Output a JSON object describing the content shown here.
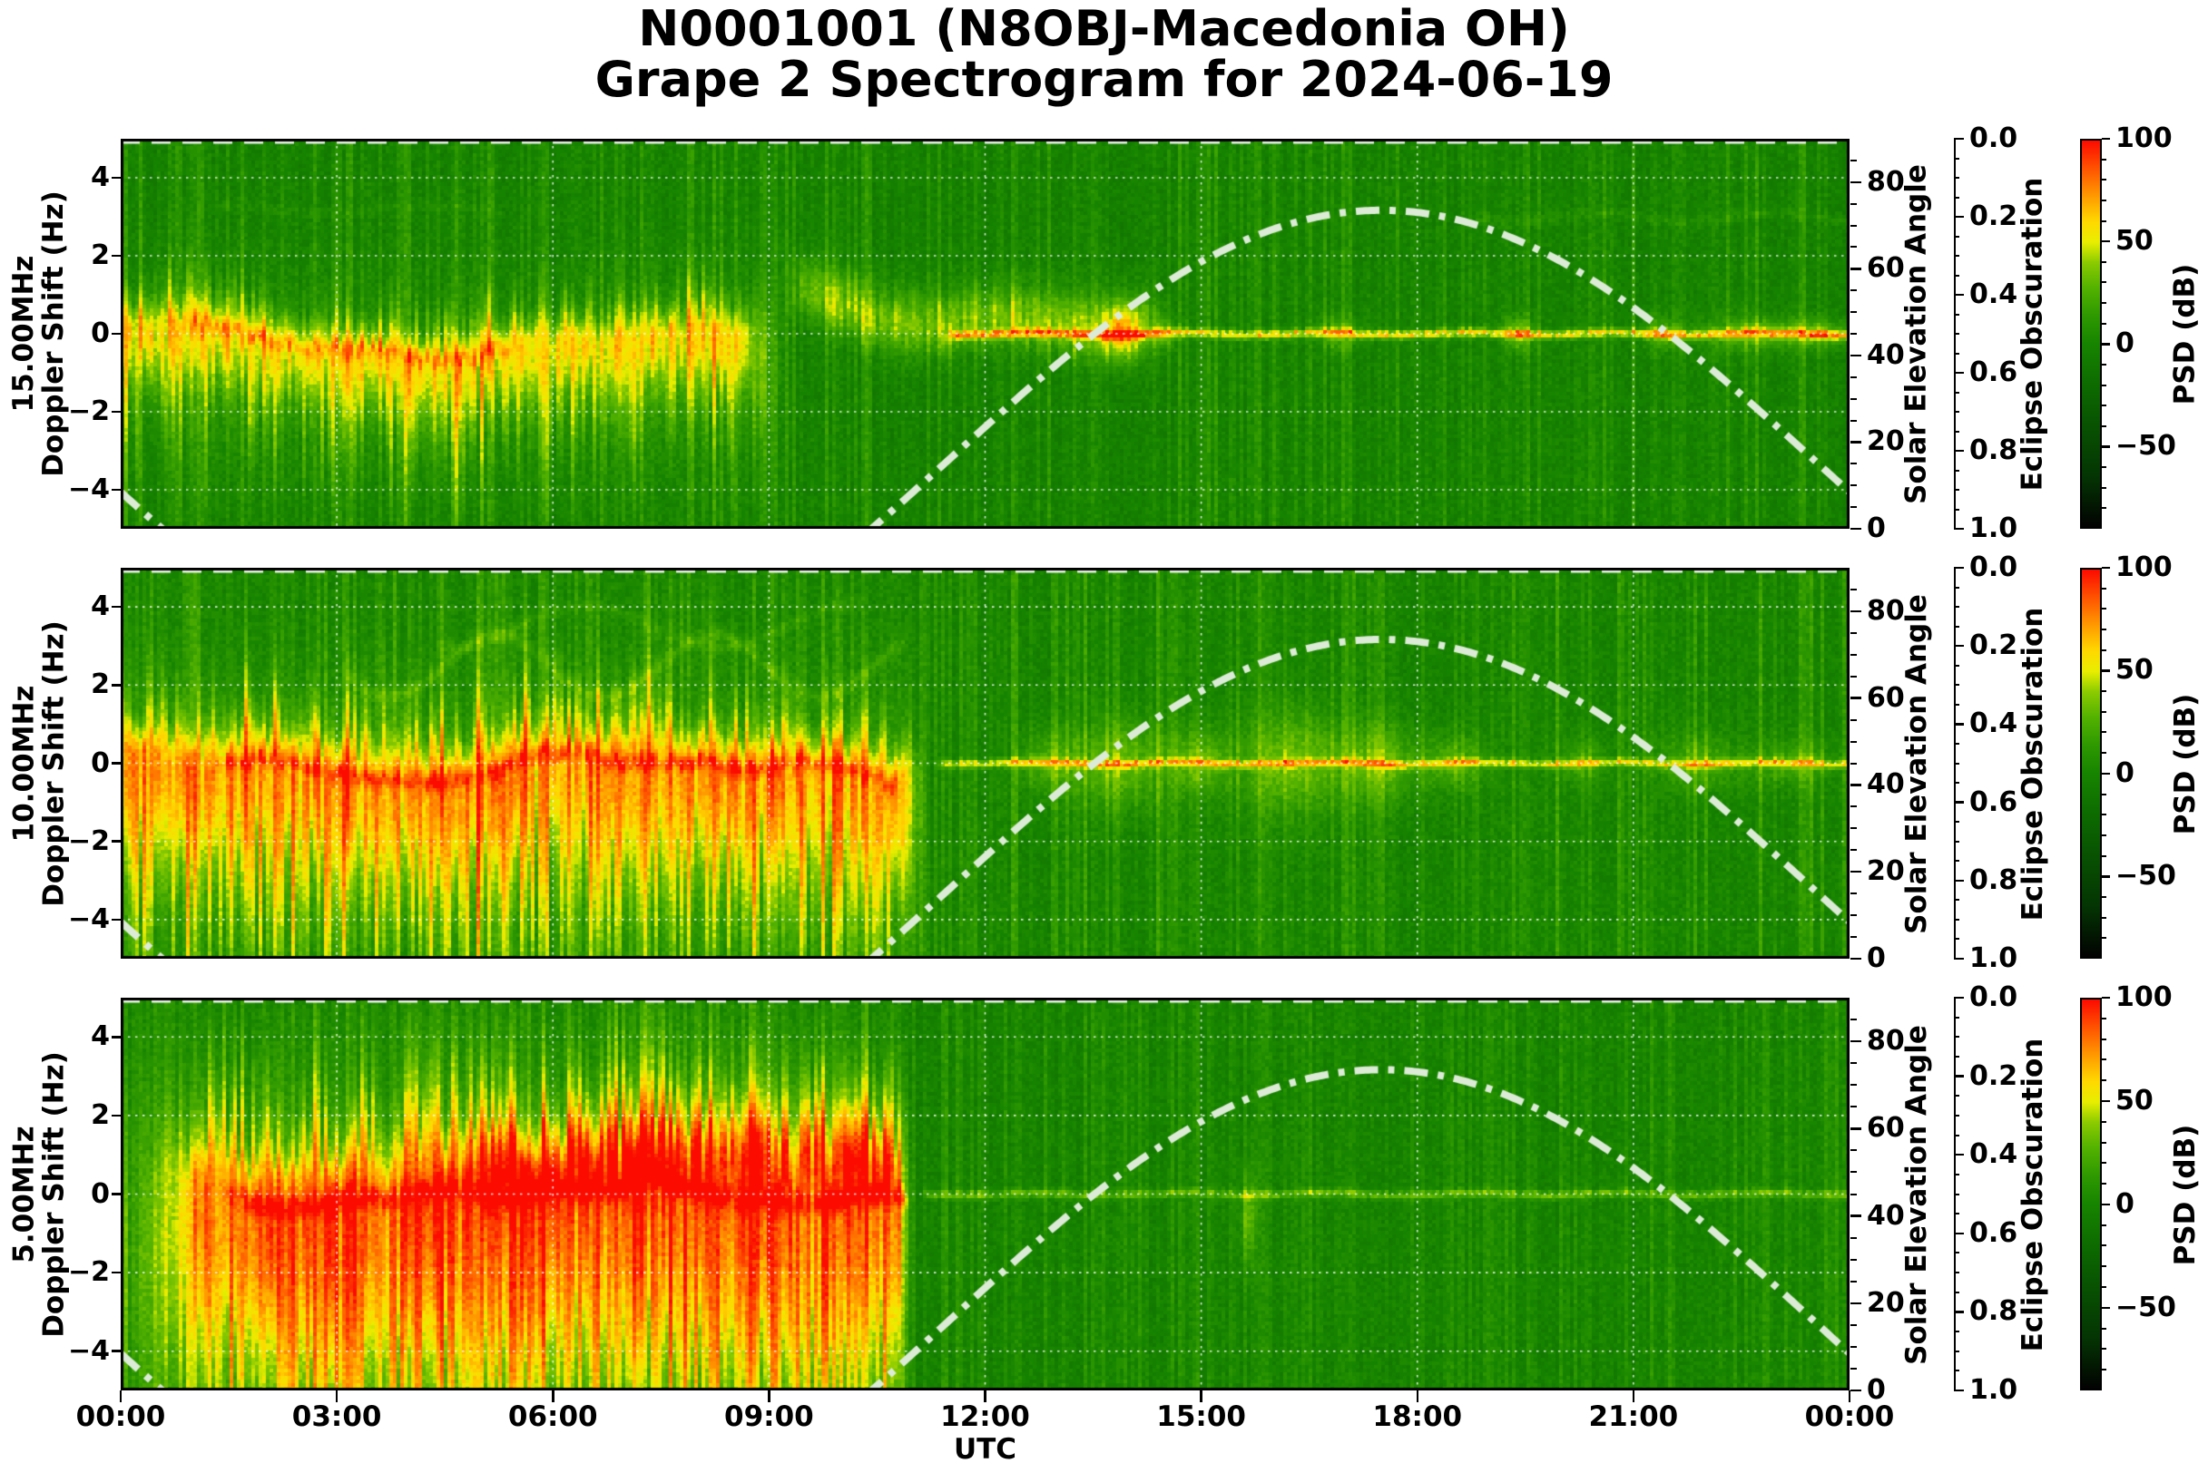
{
  "title": {
    "line1": "N0001001 (N8OBJ-Macedonia OH)",
    "line2": "Grape 2 Spectrogram for 2024-06-19"
  },
  "x_axis": {
    "label": "UTC",
    "tick_labels": [
      "00:00",
      "03:00",
      "06:00",
      "09:00",
      "12:00",
      "15:00",
      "18:00",
      "21:00",
      "00:00"
    ],
    "tick_hours": [
      0,
      3,
      6,
      9,
      12,
      15,
      18,
      21,
      24
    ],
    "range_hours": [
      0,
      24
    ],
    "grid_hours": [
      3,
      6,
      9,
      12,
      15,
      18,
      21
    ]
  },
  "doppler_axis": {
    "label": "Doppler Shift (Hz)",
    "tick_labels": [
      "4",
      "2",
      "0",
      "−2",
      "−4"
    ],
    "tick_values": [
      4,
      2,
      0,
      -2,
      -4
    ],
    "range": [
      -5,
      5
    ]
  },
  "solar_axis": {
    "label": "Solar Elevation Angle",
    "tick_labels": [
      "0",
      "20",
      "40",
      "60",
      "80"
    ],
    "tick_values": [
      0,
      20,
      40,
      60,
      80
    ],
    "minor_step": 5,
    "range": [
      0,
      90
    ]
  },
  "eclipse_axis": {
    "label": "Eclipse Obscuration",
    "tick_labels": [
      "0.0",
      "0.2",
      "0.4",
      "0.6",
      "0.8",
      "1.0"
    ],
    "tick_values": [
      0,
      0.2,
      0.4,
      0.6,
      0.8,
      1.0
    ],
    "minor_step": 0.05,
    "inverted": true
  },
  "colorbar": {
    "label": "PSD (dB)",
    "tick_labels": [
      "100",
      "50",
      "0",
      "−50"
    ],
    "tick_values": [
      100,
      50,
      0,
      -50
    ],
    "minor_step": 10,
    "range": [
      -90,
      100
    ]
  },
  "chart_data": {
    "type": "heatmap",
    "description": "Grape 2 HF Doppler-shift spectrograms (PSD in dB as color) at 15, 10 and 5 MHz versus UTC time for 2024-06-19, with solar elevation angle (white dash-dot curve, peak ~73 deg near 17:30 UTC) and eclipse obscuration (white dashed line, constant 0.0) overplotted.",
    "grid_color": "rgba(255,255,255,0.85)",
    "solar_curve": {
      "style": "dash-dot",
      "color": "#dcebd6",
      "peak_utc": 17.5,
      "peak_elevation_deg": 73.5,
      "mean_offset_deg": 16,
      "amplitude_deg": 57.5,
      "sunrise_utc": 10.4,
      "sunset_utc": 0.6
    },
    "eclipse_curve": {
      "style": "dashed",
      "color": "#eaf3e6",
      "constant_value": 0.0
    },
    "colormap_stops": [
      [
        -90,
        "#020202"
      ],
      [
        -65,
        "#043503"
      ],
      [
        -40,
        "#085202"
      ],
      [
        -20,
        "#0d6b00"
      ],
      [
        0,
        "#178400"
      ],
      [
        14,
        "#2e9900"
      ],
      [
        28,
        "#55b300"
      ],
      [
        40,
        "#8bcb00"
      ],
      [
        50,
        "#e8ee00"
      ],
      [
        60,
        "#ffd900"
      ],
      [
        72,
        "#ff9e00"
      ],
      [
        84,
        "#ff5f00"
      ],
      [
        100,
        "#fb0b00"
      ]
    ],
    "panels": [
      {
        "freq_label": "15.00MHz",
        "frequency_mhz": 15.0,
        "seed": 11,
        "render": {
          "bg": {
            "mean": -3,
            "noise": 6,
            "streak": 9
          },
          "wash": {
            "amp": 8,
            "c": -1.0,
            "s": 2.0,
            "t1": 9.6,
            "fade": 0.8
          },
          "band": {
            "t0": -0.3,
            "t1": 9.3,
            "fi": 0.4,
            "fo": 0.9,
            "amp": 50,
            "sup": 0.38,
            "sdn": 0.85,
            "jitter": 0.16,
            "wander": {
              "base": -0.15,
              "comps": [
                [
                  0.18,
                  1.07,
                  0.5
                ],
                [
                  0.28,
                  0.53,
                  2.1
                ],
                [
                  0.1,
                  2.9,
                  4.0
                ]
              ]
            }
          },
          "cloud": {
            "t0": 9.0,
            "t1": 14.7,
            "fi": 0.8,
            "fo": 0.8,
            "amp": 36,
            "sup": 0.6,
            "sdn": 0.5,
            "wander": {
              "base": 0.55,
              "comps": [
                [
                  0.45,
                  0.8,
                  1.0
                ],
                [
                  0.25,
                  1.9,
                  3.1
                ]
              ]
            }
          },
          "core": {
            "t0": 0.8,
            "t1": 5.6,
            "amp": 30,
            "w": 0.13,
            "fi": 0.3,
            "fo": 0.5
          },
          "line": {
            "start": 11.4,
            "amp": 56,
            "w": 0.075
          },
          "bursts": [
            [
              13.9,
              0.22,
              38,
              0.5,
              0
            ],
            [
              14.5,
              0.12,
              26,
              0.3,
              0
            ],
            [
              16.9,
              0.18,
              26,
              0.3,
              0
            ],
            [
              19.4,
              0.15,
              34,
              0.3,
              0
            ],
            [
              21.4,
              0.18,
              26,
              0.3,
              0
            ],
            [
              22.7,
              0.5,
              30,
              0.3,
              0
            ],
            [
              23.6,
              0.3,
              28,
              0.25,
              0
            ]
          ],
          "xlines": [
            [
              3.0,
              9,
              0.1,
              18.8,
              24.2,
              0.12,
              1.3
            ],
            [
              3.2,
              6,
              0.1,
              1.2,
              5.3,
              0.1,
              1.1
            ]
          ],
          "upMul": 1.6
        }
      },
      {
        "freq_label": "10.00MHz",
        "frequency_mhz": 10.0,
        "seed": 22,
        "render": {
          "bg": {
            "mean": -1,
            "noise": 6,
            "streak": 10
          },
          "wash": {
            "amp": 15,
            "c": -1.4,
            "s": 2.7,
            "t1": 11.3,
            "fade": 0.5
          },
          "band": {
            "t0": -0.3,
            "t1": 11.25,
            "fi": 0.4,
            "fo": 0.5,
            "amp": 56,
            "sup": 0.5,
            "sdn": 1.6,
            "jitter": 0.13,
            "wander": {
              "base": -0.1,
              "comps": [
                [
                  0.25,
                  0.9,
                  1.4
                ],
                [
                  0.18,
                  1.75,
                  3.6
                ],
                [
                  0.1,
                  3.3,
                  0.7
                ]
              ]
            }
          },
          "cloud": null,
          "core": {
            "t0": 1.1,
            "t1": 10.9,
            "amp": 34,
            "w": 0.14,
            "fi": 0.5,
            "fo": 0.4
          },
          "line": {
            "start": 11.25,
            "amp": 48,
            "w": 0.075
          },
          "bursts": [
            [
              12.9,
              0.3,
              26,
              0.55,
              0
            ],
            [
              13.9,
              0.4,
              32,
              0.8,
              0
            ],
            [
              15.0,
              0.3,
              28,
              0.6,
              0
            ],
            [
              16.3,
              0.5,
              33,
              0.9,
              0
            ],
            [
              17.5,
              0.35,
              30,
              0.7,
              0
            ],
            [
              18.5,
              0.3,
              26,
              0.5,
              0
            ],
            [
              20.3,
              0.25,
              20,
              0.4,
              0
            ],
            [
              21.9,
              0.4,
              24,
              0.5,
              0
            ],
            [
              23.2,
              0.4,
              22,
              0.4,
              0
            ]
          ],
          "xlines": [
            [
              2.5,
              13,
              0.13,
              3.2,
              10.9,
              0.8,
              1.05
            ],
            [
              3.5,
              9,
              0.11,
              4.4,
              10.3,
              0.55,
              0.85
            ]
          ],
          "upMul": 2.1
        }
      },
      {
        "freq_label": "5.00MHz",
        "frequency_mhz": 5.0,
        "seed": 33,
        "render": {
          "bg": {
            "mean": -2,
            "noise": 6,
            "streak": 8
          },
          "wash": {
            "amp": 25,
            "c": -1.6,
            "s": 3.4,
            "t1": 11.05,
            "fade": 0.35
          },
          "band": {
            "t0": 0.2,
            "t1": 11.05,
            "fi": 1.2,
            "fo": 0.3,
            "amp": 60,
            "sup": 0.75,
            "sdn": 2.6,
            "jitter": 0.12,
            "wander": {
              "base": 0.0,
              "comps": [
                [
                  0.2,
                  0.85,
                  2.2
                ],
                [
                  0.14,
                  1.9,
                  0.3
                ],
                [
                  0.1,
                  4.2,
                  1.5
                ]
              ]
            }
          },
          "cloud": {
            "t0": 4.4,
            "t1": 10.9,
            "fi": 1.0,
            "fo": 0.3,
            "amp": 28,
            "sup": 0.9,
            "sdn": 0.7,
            "wander": {
              "base": 0.9,
              "comps": [
                [
                  0.3,
                  0.7,
                  1.8
                ]
              ]
            }
          },
          "core": {
            "t0": 1.3,
            "t1": 11.0,
            "amp": 44,
            "w": 0.17,
            "fi": 0.6,
            "fo": 0.15
          },
          "line": {
            "start": 11.05,
            "amp": 30,
            "w": 0.065
          },
          "bursts": [
            [
              15.65,
              0.07,
              30,
              0.8,
              -0.6
            ]
          ],
          "xlines": [],
          "upMul": 2.6
        }
      }
    ]
  }
}
